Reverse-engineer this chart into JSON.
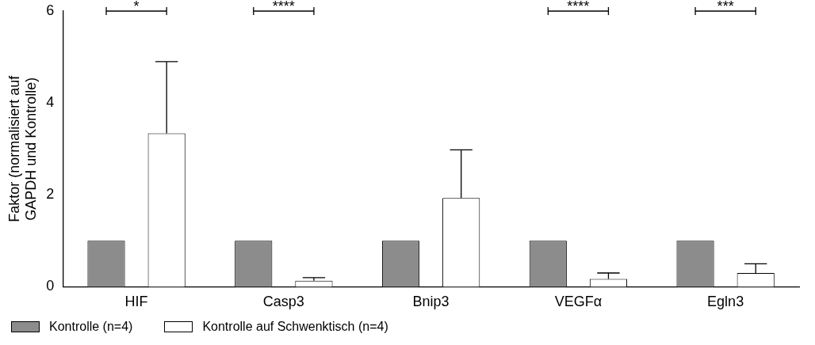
{
  "chart_data": {
    "type": "bar",
    "ylabel": "Faktor (normalisiert auf\nGAPDH und Kontrolle)",
    "categories": [
      "HIF",
      "Casp3",
      "Bnip3",
      "VEGFα",
      "Egln3"
    ],
    "series": [
      {
        "name": "Kontrolle (n=4)",
        "color": "#8c8c8c",
        "values": [
          1,
          1,
          1,
          1,
          1
        ]
      },
      {
        "name": "Kontrolle auf Schwenktisch (n=4)",
        "color": "#ffffff",
        "values": [
          3.34,
          0.13,
          1.93,
          0.17,
          0.3
        ],
        "errors": [
          [
            3.34,
            4.9
          ],
          [
            0.13,
            0.2
          ],
          [
            1.93,
            2.98
          ],
          [
            0.17,
            0.3
          ],
          [
            0.3,
            0.5
          ]
        ]
      }
    ],
    "ylim": [
      0,
      6
    ],
    "yticks": [
      0,
      2,
      4,
      6
    ],
    "grid": false,
    "legend": "bottom left",
    "annotations": [
      "*",
      "****",
      null,
      "****",
      "***"
    ]
  }
}
